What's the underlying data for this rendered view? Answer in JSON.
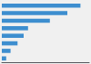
{
  "chart_data": {
    "type": "bar",
    "orientation": "horizontal",
    "categories": [
      null,
      null,
      null,
      null,
      null,
      null,
      null,
      null
    ],
    "values": [
      90,
      75,
      55,
      30,
      25,
      18,
      10,
      5
    ],
    "color": "#3d8ecf",
    "xlim": [
      0,
      100
    ],
    "grid": false,
    "tick_labels": false
  }
}
